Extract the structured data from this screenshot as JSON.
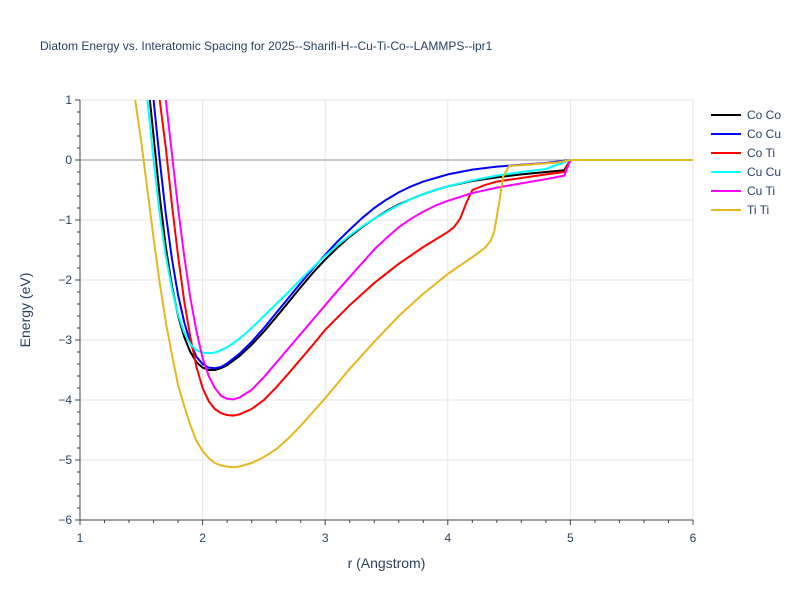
{
  "chart_data": {
    "type": "line",
    "title": "Diatom Energy vs. Interatomic Spacing for 2025--Sharifi-H--Cu-Ti-Co--LAMMPS--ipr1",
    "xlabel": "r (Angstrom)",
    "ylabel": "Energy (eV)",
    "xlim": [
      1,
      6
    ],
    "ylim": [
      -6,
      1
    ],
    "xticks": [
      1,
      2,
      3,
      4,
      5,
      6
    ],
    "yticks": [
      1,
      0,
      -1,
      -2,
      -3,
      -4,
      -5,
      -6
    ],
    "xtick_labels": [
      "1",
      "2",
      "3",
      "4",
      "5",
      "6"
    ],
    "ytick_labels": [
      "1",
      "0",
      "−1",
      "−2",
      "−3",
      "−4",
      "−5",
      "−6"
    ],
    "grid": true,
    "legend_position": "top-right, outside plot",
    "series": [
      {
        "name": "Co Co",
        "color": "#000000",
        "x": [
          1.57,
          1.6,
          1.65,
          1.7,
          1.75,
          1.8,
          1.85,
          1.9,
          1.95,
          2.0,
          2.05,
          2.1,
          2.15,
          2.2,
          2.3,
          2.4,
          2.5,
          2.6,
          2.7,
          2.8,
          2.9,
          3.0,
          3.1,
          3.2,
          3.3,
          3.4,
          3.5,
          3.6,
          3.7,
          3.8,
          3.9,
          4.0,
          4.2,
          4.4,
          4.6,
          4.8,
          4.95,
          5.0,
          5.5,
          6.0
        ],
        "y": [
          1.0,
          0.4,
          -0.6,
          -1.45,
          -2.1,
          -2.6,
          -2.95,
          -3.2,
          -3.37,
          -3.46,
          -3.5,
          -3.5,
          -3.47,
          -3.42,
          -3.27,
          -3.08,
          -2.86,
          -2.62,
          -2.37,
          -2.12,
          -1.88,
          -1.66,
          -1.46,
          -1.28,
          -1.12,
          -0.98,
          -0.85,
          -0.74,
          -0.65,
          -0.57,
          -0.5,
          -0.44,
          -0.35,
          -0.29,
          -0.24,
          -0.2,
          -0.17,
          0.0,
          0.0,
          0.0
        ]
      },
      {
        "name": "Co Cu",
        "color": "#0000ff",
        "x": [
          1.6,
          1.65,
          1.7,
          1.75,
          1.8,
          1.85,
          1.9,
          1.95,
          2.0,
          2.05,
          2.1,
          2.15,
          2.2,
          2.3,
          2.4,
          2.5,
          2.6,
          2.7,
          2.8,
          2.9,
          3.0,
          3.1,
          3.2,
          3.3,
          3.4,
          3.5,
          3.6,
          3.7,
          3.8,
          3.9,
          4.0,
          4.2,
          4.4,
          4.6,
          4.8,
          5.0,
          5.5,
          6.0
        ],
        "y": [
          1.0,
          0.0,
          -0.9,
          -1.65,
          -2.25,
          -2.7,
          -3.05,
          -3.28,
          -3.4,
          -3.46,
          -3.47,
          -3.45,
          -3.39,
          -3.23,
          -3.03,
          -2.8,
          -2.55,
          -2.3,
          -2.05,
          -1.81,
          -1.58,
          -1.36,
          -1.16,
          -0.97,
          -0.8,
          -0.66,
          -0.54,
          -0.44,
          -0.36,
          -0.3,
          -0.24,
          -0.16,
          -0.11,
          -0.08,
          -0.05,
          0.0,
          0.0,
          0.0
        ]
      },
      {
        "name": "Co Ti",
        "color": "#ff0000",
        "x": [
          1.65,
          1.7,
          1.75,
          1.8,
          1.85,
          1.9,
          1.95,
          2.0,
          2.05,
          2.1,
          2.15,
          2.2,
          2.25,
          2.3,
          2.4,
          2.5,
          2.6,
          2.7,
          2.8,
          2.9,
          3.0,
          3.2,
          3.4,
          3.6,
          3.8,
          4.0,
          4.05,
          4.1,
          4.15,
          4.2,
          4.3,
          4.4,
          4.6,
          4.8,
          4.95,
          5.0,
          5.5,
          6.0
        ],
        "y": [
          1.0,
          0.2,
          -0.75,
          -1.6,
          -2.35,
          -2.95,
          -3.45,
          -3.8,
          -4.02,
          -4.15,
          -4.22,
          -4.25,
          -4.26,
          -4.24,
          -4.15,
          -4.0,
          -3.79,
          -3.56,
          -3.32,
          -3.08,
          -2.83,
          -2.42,
          -2.05,
          -1.73,
          -1.45,
          -1.2,
          -1.12,
          -0.98,
          -0.72,
          -0.5,
          -0.42,
          -0.36,
          -0.3,
          -0.24,
          -0.2,
          0.0,
          0.0,
          0.0
        ]
      },
      {
        "name": "Cu Cu",
        "color": "#00ffff",
        "x": [
          1.55,
          1.6,
          1.65,
          1.7,
          1.75,
          1.8,
          1.85,
          1.9,
          1.95,
          2.0,
          2.05,
          2.1,
          2.15,
          2.2,
          2.3,
          2.4,
          2.5,
          2.6,
          2.7,
          2.8,
          2.9,
          3.0,
          3.1,
          3.2,
          3.3,
          3.4,
          3.5,
          3.6,
          3.7,
          3.8,
          3.9,
          4.0,
          4.2,
          4.4,
          4.6,
          4.8,
          5.0,
          5.5,
          6.0
        ],
        "y": [
          1.0,
          0.0,
          -0.9,
          -1.6,
          -2.15,
          -2.58,
          -2.88,
          -3.07,
          -3.17,
          -3.21,
          -3.22,
          -3.21,
          -3.17,
          -3.12,
          -2.98,
          -2.8,
          -2.6,
          -2.4,
          -2.2,
          -1.99,
          -1.79,
          -1.6,
          -1.42,
          -1.26,
          -1.11,
          -0.98,
          -0.86,
          -0.75,
          -0.65,
          -0.57,
          -0.5,
          -0.44,
          -0.34,
          -0.26,
          -0.2,
          -0.15,
          0.0,
          0.0,
          0.0
        ]
      },
      {
        "name": "Cu Ti",
        "color": "#ff00ff",
        "x": [
          1.7,
          1.75,
          1.8,
          1.85,
          1.9,
          1.95,
          2.0,
          2.05,
          2.1,
          2.15,
          2.2,
          2.25,
          2.3,
          2.4,
          2.5,
          2.6,
          2.7,
          2.8,
          2.9,
          3.0,
          3.1,
          3.2,
          3.3,
          3.4,
          3.5,
          3.6,
          3.7,
          3.8,
          3.9,
          4.0,
          4.2,
          4.4,
          4.6,
          4.8,
          4.95,
          5.0,
          5.5,
          6.0
        ],
        "y": [
          1.0,
          0.1,
          -0.8,
          -1.6,
          -2.3,
          -2.85,
          -3.3,
          -3.6,
          -3.8,
          -3.93,
          -3.98,
          -3.99,
          -3.96,
          -3.83,
          -3.62,
          -3.38,
          -3.14,
          -2.9,
          -2.66,
          -2.42,
          -2.18,
          -1.95,
          -1.72,
          -1.49,
          -1.3,
          -1.12,
          -0.98,
          -0.86,
          -0.76,
          -0.68,
          -0.55,
          -0.46,
          -0.39,
          -0.32,
          -0.26,
          0.0,
          0.0,
          0.0
        ]
      },
      {
        "name": "Ti Ti",
        "color": "#e6b81e",
        "x": [
          1.45,
          1.5,
          1.55,
          1.6,
          1.65,
          1.7,
          1.75,
          1.8,
          1.85,
          1.9,
          1.95,
          2.0,
          2.05,
          2.1,
          2.15,
          2.2,
          2.25,
          2.3,
          2.4,
          2.5,
          2.6,
          2.7,
          2.8,
          2.9,
          3.0,
          3.2,
          3.4,
          3.6,
          3.8,
          4.0,
          4.2,
          4.3,
          4.35,
          4.38,
          4.42,
          4.45,
          4.5,
          4.7,
          4.9,
          5.0,
          5.5,
          6.0
        ],
        "y": [
          1.0,
          0.3,
          -0.5,
          -1.3,
          -2.05,
          -2.7,
          -3.25,
          -3.75,
          -4.1,
          -4.42,
          -4.68,
          -4.85,
          -4.97,
          -5.05,
          -5.09,
          -5.11,
          -5.12,
          -5.11,
          -5.05,
          -4.95,
          -4.82,
          -4.64,
          -4.43,
          -4.2,
          -3.97,
          -3.48,
          -3.03,
          -2.6,
          -2.23,
          -1.9,
          -1.62,
          -1.47,
          -1.35,
          -1.18,
          -0.7,
          -0.28,
          -0.1,
          -0.07,
          -0.04,
          0.0,
          0.0,
          0.0
        ]
      }
    ]
  }
}
